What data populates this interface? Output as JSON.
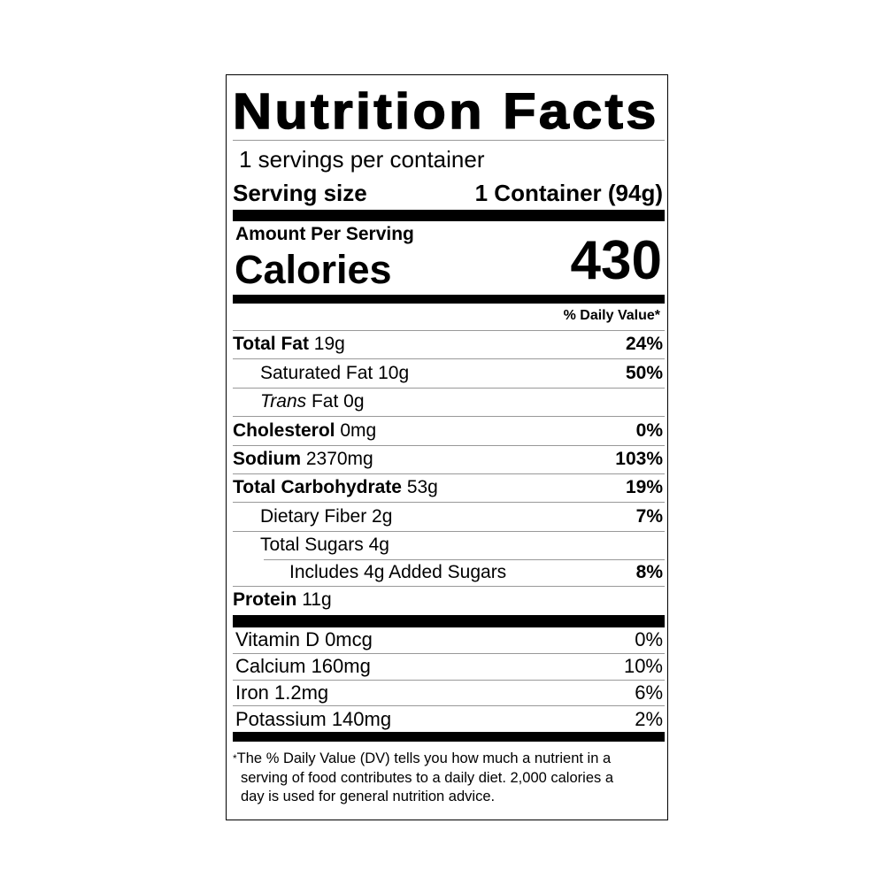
{
  "title": "Nutrition Facts",
  "servings_per_container": "1 servings per container",
  "serving_size": {
    "label": "Serving size",
    "value": "1 Container (94g)"
  },
  "amount_per_serving": "Amount Per Serving",
  "calories": {
    "label": "Calories",
    "value": "430"
  },
  "dv_header": "% Daily Value*",
  "nutrients": [
    {
      "name": "Total Fat",
      "amount": "19g",
      "dv": "24%"
    },
    {
      "name": "Saturated Fat",
      "amount": "10g",
      "dv": "50%"
    },
    {
      "name": "Trans",
      "name_rest": "Fat",
      "amount": "0g",
      "dv": ""
    },
    {
      "name": "Cholesterol",
      "amount": "0mg",
      "dv": "0%"
    },
    {
      "name": "Sodium",
      "amount": "2370mg",
      "dv": "103%"
    },
    {
      "name": "Total Carbohydrate",
      "amount": "53g",
      "dv": "19%"
    },
    {
      "name": "Dietary Fiber",
      "amount": "2g",
      "dv": "7%"
    },
    {
      "name": "Total Sugars",
      "amount": "4g",
      "dv": ""
    },
    {
      "name": "Includes 4g Added Sugars",
      "amount": "",
      "dv": "8%"
    },
    {
      "name": "Protein",
      "amount": "11g",
      "dv": ""
    }
  ],
  "vitamins": [
    {
      "name": "Vitamin D 0mcg",
      "dv": "0%"
    },
    {
      "name": "Calcium 160mg",
      "dv": "10%"
    },
    {
      "name": "Iron 1.2mg",
      "dv": "6%"
    },
    {
      "name": "Potassium 140mg",
      "dv": "2%"
    }
  ],
  "footnote": {
    "star": "*",
    "line1": "The % Daily Value (DV) tells you how much a nutrient in a",
    "line2": "serving of food contributes to a daily diet. 2,000 calories a",
    "line3": "day is used for general nutrition advice."
  }
}
